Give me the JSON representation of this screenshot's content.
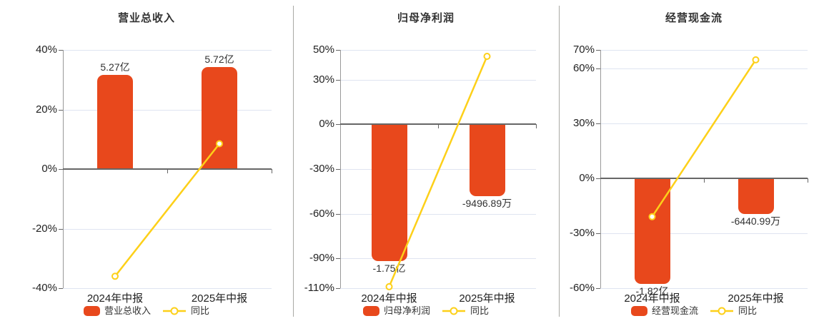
{
  "page": {
    "background": "#ffffff"
  },
  "colors": {
    "bar": "#E8481C",
    "line": "#FDD019",
    "grid": "#DFE4F1",
    "zero_line": "#666666",
    "axis_line": "#999999",
    "tick_mark": "#666666",
    "divider": "#A9A9A4",
    "title_text": "#333333",
    "tick_text": "#222222",
    "category_text": "#222222",
    "value_text": "#333333",
    "legend_text": "#333333"
  },
  "chart_data": [
    {
      "type": "bar",
      "title": "营业总收入",
      "categories": [
        "2024年中报",
        "2025年中报"
      ],
      "series": [
        {
          "name": "营业总收入",
          "type": "bar",
          "value_labels": [
            "5.27亿",
            "5.72亿"
          ],
          "plotted_axis_pct": [
            31.5,
            34.2
          ]
        },
        {
          "name": "同比",
          "type": "line",
          "values_pct": [
            -36.0,
            8.5
          ]
        }
      ],
      "yticks_pct": [
        40,
        20,
        0,
        -20,
        -40
      ],
      "ylim_pct": [
        -40,
        40
      ],
      "grid": "on",
      "legend_position": "bottom"
    },
    {
      "type": "bar",
      "title": "归母净利润",
      "categories": [
        "2024年中报",
        "2025年中报"
      ],
      "series": [
        {
          "name": "归母净利润",
          "type": "bar",
          "value_labels": [
            "-1.75亿",
            "-9496.89万"
          ],
          "plotted_axis_pct": [
            -92,
            -48
          ]
        },
        {
          "name": "同比",
          "type": "line",
          "values_pct": [
            -109,
            45.7
          ]
        }
      ],
      "yticks_pct": [
        50,
        30,
        0,
        -30,
        -60,
        -90,
        -110
      ],
      "ylim_pct": [
        -110,
        50
      ],
      "grid": "on",
      "legend_position": "bottom"
    },
    {
      "type": "bar",
      "title": "经营现金流",
      "categories": [
        "2024年中报",
        "2025年中报"
      ],
      "series": [
        {
          "name": "经营现金流",
          "type": "bar",
          "value_labels": [
            "-1.82亿",
            "-6440.99万"
          ],
          "plotted_axis_pct": [
            -57.6,
            -19.5
          ]
        },
        {
          "name": "同比",
          "type": "line",
          "values_pct": [
            -21,
            64.6
          ]
        }
      ],
      "yticks_pct": [
        70,
        60,
        30,
        0,
        -30,
        -60
      ],
      "ylim_pct": [
        -60,
        70
      ],
      "grid": "on",
      "legend_position": "bottom"
    }
  ]
}
